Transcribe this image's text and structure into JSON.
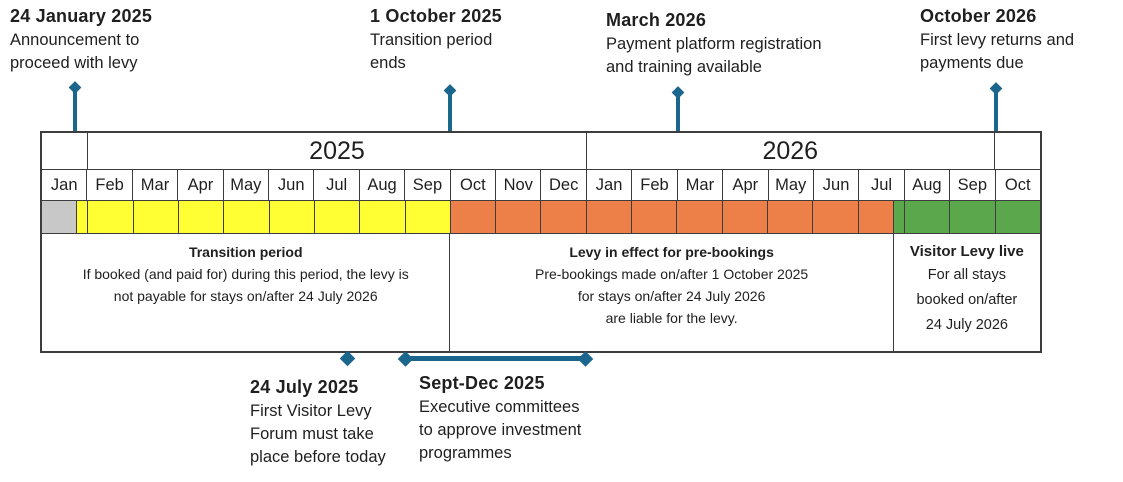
{
  "colors": {
    "accent_teal": "#1b668d",
    "band_gray": "#c8c8c8",
    "band_yellow": "#ffff33",
    "band_orange": "#ed8049",
    "band_green": "#5ba84c",
    "border": "#3d3d3d",
    "text": "#1f1f1f"
  },
  "annotations_top": [
    {
      "date": "24 January 2025",
      "lines": [
        "Announcement to",
        "proceed with levy"
      ]
    },
    {
      "date": "1 October 2025",
      "lines": [
        "Transition period",
        "ends"
      ]
    },
    {
      "date": "March 2026",
      "lines": [
        "Payment platform registration",
        "and training available"
      ]
    },
    {
      "date": "October 2026",
      "lines": [
        "First levy returns and",
        "payments due"
      ]
    }
  ],
  "timeline": {
    "year_cells": [
      {
        "label": "",
        "span_months": 1
      },
      {
        "label": "2025",
        "span_months": 11
      },
      {
        "label": "2026",
        "span_months": 9
      },
      {
        "label": "",
        "span_months": 1
      }
    ],
    "months": [
      "Jan",
      "Feb",
      "Mar",
      "Apr",
      "May",
      "Jun",
      "Jul",
      "Aug",
      "Sep",
      "Oct",
      "Nov",
      "Dec",
      "Jan",
      "Feb",
      "Mar",
      "Apr",
      "May",
      "Jun",
      "Jul",
      "Aug",
      "Sep",
      "Oct"
    ],
    "band_segments": [
      {
        "color": "gray",
        "units": 77
      },
      {
        "color": "yellow",
        "units": 23
      },
      {
        "color": "yellow",
        "units": 100
      },
      {
        "color": "yellow",
        "units": 100
      },
      {
        "color": "yellow",
        "units": 100
      },
      {
        "color": "yellow",
        "units": 100
      },
      {
        "color": "yellow",
        "units": 100
      },
      {
        "color": "yellow",
        "units": 100
      },
      {
        "color": "yellow",
        "units": 100
      },
      {
        "color": "yellow",
        "units": 100
      },
      {
        "color": "orange",
        "units": 100
      },
      {
        "color": "orange",
        "units": 100
      },
      {
        "color": "orange",
        "units": 100
      },
      {
        "color": "orange",
        "units": 100
      },
      {
        "color": "orange",
        "units": 100
      },
      {
        "color": "orange",
        "units": 100
      },
      {
        "color": "orange",
        "units": 100
      },
      {
        "color": "orange",
        "units": 100
      },
      {
        "color": "orange",
        "units": 100
      },
      {
        "color": "orange",
        "units": 77
      },
      {
        "color": "green",
        "units": 23
      },
      {
        "color": "green",
        "units": 100
      },
      {
        "color": "green",
        "units": 100
      },
      {
        "color": "green",
        "units": 100
      }
    ],
    "descriptions": [
      {
        "title": "Transition period",
        "lines": [
          "If booked (and paid for) during this period, the levy is",
          "not payable for stays on/after 24 July 2026"
        ],
        "span_units": 900
      },
      {
        "title": "Levy in effect for pre-bookings",
        "lines": [
          "Pre-bookings made on/after 1 October 2025",
          "for stays on/after 24 July 2026",
          "are liable for the levy."
        ],
        "span_units": 977
      },
      {
        "title": "Visitor Levy live",
        "lines": [
          "For all stays",
          "booked on/after",
          "24 July 2026"
        ],
        "span_units": 323
      }
    ]
  },
  "annotations_bottom": [
    {
      "date": "24 July 2025",
      "lines": [
        "First Visitor Levy",
        "Forum must take",
        "place before today"
      ],
      "marker": "diamond"
    },
    {
      "date": "Sept-Dec 2025",
      "lines": [
        "Executive committees",
        "to approve investment",
        "programmes"
      ],
      "marker": "range"
    }
  ]
}
